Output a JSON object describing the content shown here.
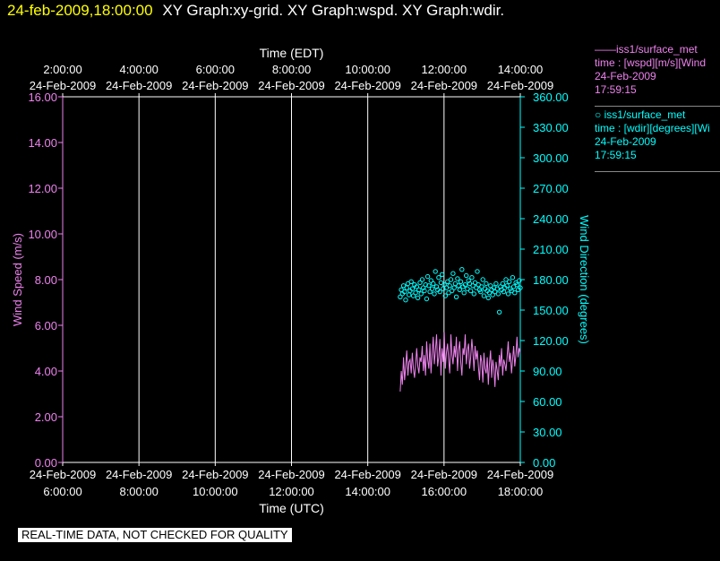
{
  "header": {
    "datetime": "24-feb-2009,18:00:00",
    "graphs": "XY Graph:xy-grid.  XY Graph:wspd.  XY Graph:wdir."
  },
  "legend": {
    "wspd": {
      "line1": "iss1/surface_met",
      "line2": "time : [wspd][m/s][Wind",
      "line3": "24-Feb-2009",
      "line4": "17:59:15"
    },
    "wdir": {
      "line1": "iss1/surface_met",
      "line2": "time : [wdir][degrees][Wi",
      "line3": "24-Feb-2009",
      "line4": "17:59:15"
    }
  },
  "footer": {
    "note": "REAL-TIME DATA, NOT CHECKED FOR QUALITY"
  },
  "colors": {
    "wspd": "#ee82ee",
    "wdir": "#00ffff",
    "grid": "#ffffff"
  },
  "chart_data": {
    "type": "line",
    "top_axis": {
      "label": "Time (EDT)",
      "ticks": [
        [
          "2:00:00",
          "24-Feb-2009"
        ],
        [
          "4:00:00",
          "24-Feb-2009"
        ],
        [
          "6:00:00",
          "24-Feb-2009"
        ],
        [
          "8:00:00",
          "24-Feb-2009"
        ],
        [
          "10:00:00",
          "24-Feb-2009"
        ],
        [
          "12:00:00",
          "24-Feb-2009"
        ],
        [
          "14:00:00",
          "24-Feb-2009"
        ]
      ]
    },
    "bottom_axis": {
      "label": "Time (UTC)",
      "ticks": [
        [
          "24-Feb-2009",
          "6:00:00"
        ],
        [
          "24-Feb-2009",
          "8:00:00"
        ],
        [
          "24-Feb-2009",
          "10:00:00"
        ],
        [
          "24-Feb-2009",
          "12:00:00"
        ],
        [
          "24-Feb-2009",
          "14:00:00"
        ],
        [
          "24-Feb-2009",
          "16:00:00"
        ],
        [
          "24-Feb-2009",
          "18:00:00"
        ]
      ]
    },
    "xlim_utc_hours": [
      6,
      18
    ],
    "grid_x": true,
    "grid_y": false,
    "left_axis": {
      "label": "Wind Speed (m/s)",
      "ylim": [
        0,
        16
      ],
      "ticks": [
        "0.00",
        "2.00",
        "4.00",
        "6.00",
        "8.00",
        "10.00",
        "12.00",
        "14.00",
        "16.00"
      ]
    },
    "right_axis": {
      "label": "Wind Direction (degrees)",
      "ylim": [
        0,
        360
      ],
      "ticks": [
        "0.00",
        "30.00",
        "60.00",
        "90.00",
        "120.00",
        "150.00",
        "180.00",
        "210.00",
        "240.00",
        "270.00",
        "300.00",
        "330.00",
        "360.00"
      ]
    },
    "series": [
      {
        "name": "wspd",
        "style": "line",
        "axis": "left",
        "x_start_utc_hours": 14.85,
        "x_end_utc_hours": 18.0,
        "values": [
          3.1,
          4.0,
          3.4,
          4.6,
          3.6,
          4.2,
          4.9,
          3.8,
          4.4,
          4.5,
          3.9,
          4.8,
          4.1,
          3.7,
          4.3,
          5.0,
          4.2,
          3.9,
          4.6,
          4.4,
          5.1,
          4.0,
          4.7,
          3.8,
          5.3,
          4.5,
          4.1,
          5.2,
          3.9,
          4.8,
          5.5,
          4.3,
          4.9,
          5.6,
          4.2,
          4.6,
          5.4,
          3.8,
          5.0,
          4.4,
          5.7,
          4.1,
          4.8,
          5.2,
          4.5,
          3.9,
          5.6,
          4.7,
          4.3,
          5.1,
          4.6,
          5.5,
          4.0,
          4.9,
          5.3,
          4.4,
          3.8,
          5.0,
          4.7,
          5.6,
          4.3,
          4.9,
          5.2,
          4.1,
          4.6,
          5.4,
          4.8,
          4.0,
          5.1,
          4.5,
          4.9,
          4.2,
          3.6,
          4.7,
          4.4,
          3.5,
          4.8,
          4.1,
          3.9,
          4.6,
          3.4,
          4.3,
          4.9,
          3.7,
          4.5,
          4.1,
          3.3,
          4.4,
          4.0,
          3.6,
          4.7,
          4.2,
          5.0,
          3.8,
          4.5,
          4.3,
          4.0,
          4.6,
          5.3,
          4.4,
          4.8,
          3.9,
          4.5,
          5.1,
          4.2,
          4.7,
          5.5,
          4.6,
          5.0,
          4.8
        ]
      },
      {
        "name": "wdir",
        "style": "scatter",
        "axis": "right",
        "x_start_utc_hours": 14.85,
        "x_end_utc_hours": 18.0,
        "values": [
          163,
          170,
          166,
          174,
          168,
          160,
          172,
          176,
          165,
          169,
          178,
          171,
          164,
          175,
          167,
          173,
          162,
          170,
          177,
          166,
          180,
          172,
          169,
          175,
          161,
          183,
          174,
          168,
          179,
          171,
          176,
          166,
          188,
          173,
          170,
          182,
          168,
          177,
          185,
          171,
          175,
          164,
          172,
          178,
          167,
          174,
          180,
          169,
          186,
          172,
          176,
          163,
          181,
          174,
          170,
          178,
          190,
          173,
          167,
          175,
          184,
          171,
          179,
          176,
          169,
          182,
          174,
          166,
          177,
          172,
          188,
          175,
          170,
          168,
          173,
          180,
          164,
          171,
          176,
          169,
          162,
          167,
          174,
          170,
          165,
          172,
          168,
          176,
          171,
          166,
          148,
          173,
          170,
          176,
          168,
          172,
          180,
          174,
          166,
          178,
          171,
          169,
          182,
          173,
          167,
          177,
          175,
          170,
          179,
          172
        ]
      }
    ]
  }
}
